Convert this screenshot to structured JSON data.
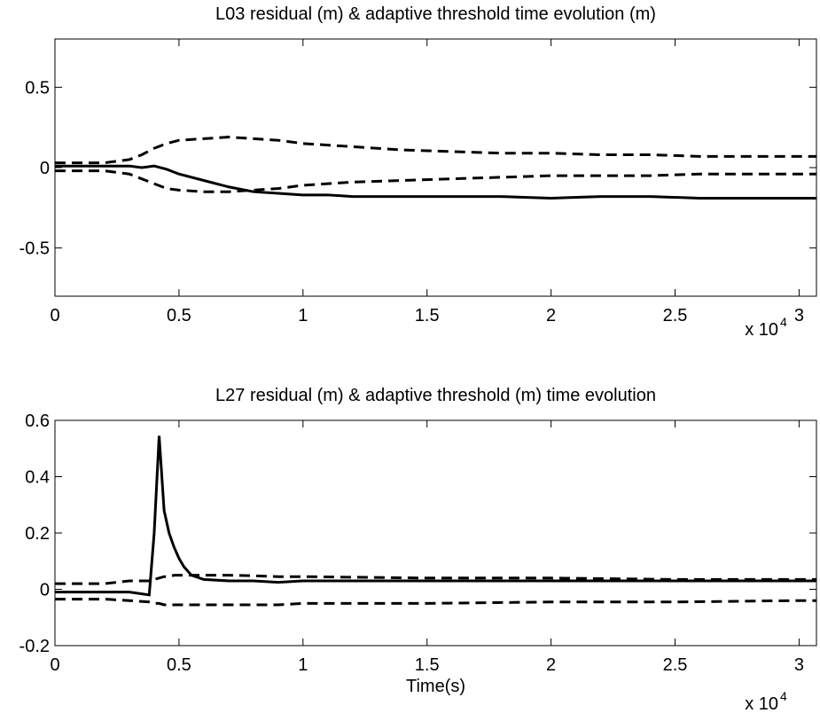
{
  "chart_data": [
    {
      "type": "line",
      "title": "L03 residual (m) & adaptive threshold time evolution (m)",
      "x": [
        0,
        0.2,
        0.3,
        0.35,
        0.4,
        0.45,
        0.5,
        0.6,
        0.7,
        0.8,
        0.9,
        1.0,
        1.1,
        1.2,
        1.4,
        1.6,
        1.8,
        2.0,
        2.2,
        2.4,
        2.6,
        2.8,
        3.0,
        3.07
      ],
      "series": [
        {
          "color": "#000000",
          "style": "solid",
          "values": [
            0.01,
            0.01,
            0.01,
            0.0,
            0.01,
            -0.01,
            -0.04,
            -0.08,
            -0.12,
            -0.15,
            -0.16,
            -0.17,
            -0.17,
            -0.18,
            -0.18,
            -0.18,
            -0.18,
            -0.19,
            -0.18,
            -0.18,
            -0.19,
            -0.19,
            -0.19,
            -0.19
          ]
        },
        {
          "color": "#000000",
          "style": "dashed",
          "values": [
            0.03,
            0.03,
            0.05,
            0.08,
            0.12,
            0.15,
            0.17,
            0.18,
            0.19,
            0.18,
            0.17,
            0.15,
            0.14,
            0.13,
            0.11,
            0.1,
            0.09,
            0.09,
            0.08,
            0.08,
            0.07,
            0.07,
            0.07,
            0.07
          ]
        },
        {
          "color": "#000000",
          "style": "dashed",
          "values": [
            -0.02,
            -0.02,
            -0.04,
            -0.07,
            -0.1,
            -0.13,
            -0.14,
            -0.15,
            -0.15,
            -0.14,
            -0.13,
            -0.11,
            -0.1,
            -0.09,
            -0.08,
            -0.07,
            -0.06,
            -0.05,
            -0.05,
            -0.05,
            -0.04,
            -0.04,
            -0.04,
            -0.04
          ]
        }
      ],
      "xlim": [
        0,
        3.07
      ],
      "xticks": [
        0,
        0.5,
        1,
        1.5,
        2,
        2.5,
        3
      ],
      "ylim": [
        -0.8,
        0.8
      ],
      "yticks": [
        -0.5,
        0,
        0.5
      ],
      "x_multiplier": {
        "base": "x 10",
        "exponent": "4"
      },
      "grid": false
    },
    {
      "type": "line",
      "title": "L27 residual (m) & adaptive threshold (m) time evolution",
      "x_label": "Time(s)",
      "x": [
        0,
        0.2,
        0.3,
        0.38,
        0.4,
        0.42,
        0.44,
        0.46,
        0.48,
        0.5,
        0.52,
        0.55,
        0.6,
        0.7,
        0.8,
        0.9,
        1.0,
        1.5,
        2.0,
        2.5,
        3.0,
        3.07
      ],
      "series": [
        {
          "color": "#000000",
          "style": "solid",
          "values": [
            -0.01,
            -0.01,
            -0.01,
            -0.02,
            0.2,
            0.545,
            0.28,
            0.2,
            0.15,
            0.11,
            0.08,
            0.05,
            0.035,
            0.03,
            0.03,
            0.025,
            0.03,
            0.03,
            0.03,
            0.03,
            0.03,
            0.03
          ]
        },
        {
          "color": "#000000",
          "style": "dashed",
          "values": [
            0.02,
            0.02,
            0.03,
            0.03,
            0.035,
            0.04,
            0.045,
            0.045,
            0.05,
            0.05,
            0.05,
            0.05,
            0.05,
            0.05,
            0.048,
            0.045,
            0.045,
            0.04,
            0.04,
            0.035,
            0.035,
            0.035
          ]
        },
        {
          "color": "#000000",
          "style": "dashed",
          "values": [
            -0.035,
            -0.035,
            -0.04,
            -0.045,
            -0.05,
            -0.05,
            -0.055,
            -0.055,
            -0.055,
            -0.055,
            -0.055,
            -0.055,
            -0.055,
            -0.055,
            -0.055,
            -0.055,
            -0.05,
            -0.05,
            -0.045,
            -0.045,
            -0.04,
            -0.04
          ]
        }
      ],
      "xlim": [
        0,
        3.07
      ],
      "xticks": [
        0,
        0.5,
        1,
        1.5,
        2,
        2.5,
        3
      ],
      "ylim": [
        -0.2,
        0.6
      ],
      "yticks": [
        -0.2,
        0,
        0.2,
        0.4,
        0.6
      ],
      "x_multiplier": {
        "base": "x 10",
        "exponent": "4"
      },
      "grid": false
    }
  ]
}
